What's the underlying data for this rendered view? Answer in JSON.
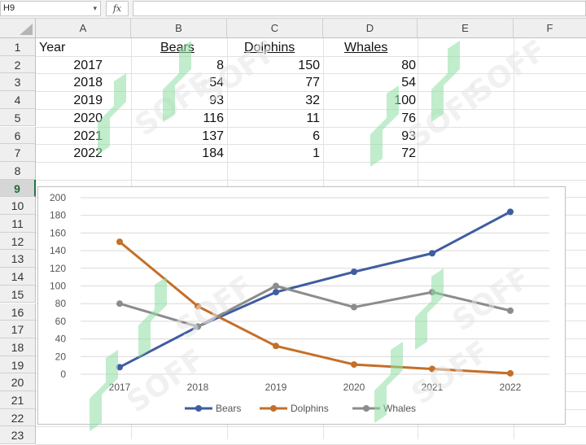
{
  "formula_bar": {
    "name_box": "H9",
    "fx_label": "fx",
    "formula": ""
  },
  "columns": [
    "A",
    "B",
    "C",
    "D",
    "E",
    "F"
  ],
  "rows": [
    "1",
    "2",
    "3",
    "4",
    "5",
    "6",
    "7",
    "8",
    "9",
    "10",
    "11",
    "12",
    "13",
    "14",
    "15",
    "16",
    "17",
    "18",
    "19",
    "20",
    "21",
    "22",
    "23"
  ],
  "selected_row": "9",
  "table": {
    "headers": [
      "Year",
      "Bears",
      "Dolphins",
      "Whales"
    ],
    "rows": [
      [
        "2017",
        "8",
        "150",
        "80"
      ],
      [
        "2018",
        "54",
        "77",
        "54"
      ],
      [
        "2019",
        "93",
        "32",
        "100"
      ],
      [
        "2020",
        "116",
        "11",
        "76"
      ],
      [
        "2021",
        "137",
        "6",
        "93"
      ],
      [
        "2022",
        "184",
        "1",
        "72"
      ]
    ]
  },
  "watermark_text": "SOFF",
  "chart_data": {
    "type": "line",
    "title": "",
    "xlabel": "",
    "ylabel": "",
    "categories": [
      "2017",
      "2018",
      "2019",
      "2020",
      "2021",
      "2022"
    ],
    "y_ticks": [
      "0",
      "20",
      "40",
      "60",
      "80",
      "100",
      "120",
      "140",
      "160",
      "180",
      "200"
    ],
    "ylim": [
      0,
      200
    ],
    "grid": true,
    "legend_position": "bottom",
    "series": [
      {
        "name": "Bears",
        "values": [
          8,
          54,
          93,
          116,
          137,
          184
        ],
        "color": "#3f5da0"
      },
      {
        "name": "Dolphins",
        "values": [
          150,
          77,
          32,
          11,
          6,
          1
        ],
        "color": "#c46f28"
      },
      {
        "name": "Whales",
        "values": [
          80,
          54,
          100,
          76,
          93,
          72
        ],
        "color": "#8c8c8c"
      }
    ]
  }
}
